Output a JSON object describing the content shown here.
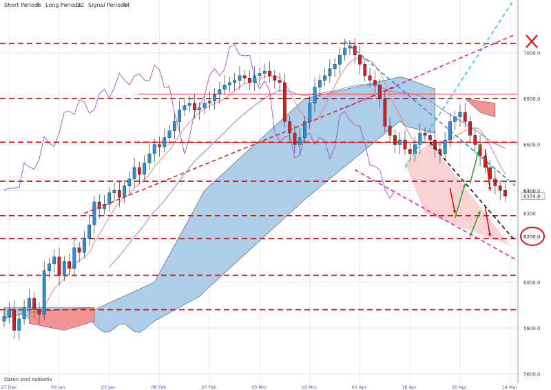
{
  "header": {
    "short_label": "Short Periode",
    "short_value": "7",
    "long_label": "Long Periode",
    "long_value": "22",
    "signal_label": "Signal Periode",
    "signal_value": "44"
  },
  "footer_note": "Daten sind indikativ",
  "colors": {
    "bull": "#2b8fd6",
    "bear": "#cc2222",
    "cloud_blue": "#a9cbe8",
    "cloud_red": "#f29292",
    "support": "#cc1111",
    "trend_red": "#dd2222",
    "trend_magenta": "#dd2299",
    "channel_blue": "#2a8ae0",
    "channel_cyan": "#22ccdd",
    "purple": "#9a55c0",
    "lavender": "#8a80e0",
    "salmon": "#f08080"
  },
  "chart_data": {
    "type": "candlestick",
    "y_ticks": [
      "7000.0",
      "6800.0",
      "6600.0",
      "6400.0",
      "6200.0",
      "6000.0",
      "5800.0",
      "5600.0"
    ],
    "y_value_ticks": [
      7000,
      6800,
      6600,
      6400,
      6200,
      6000,
      5800,
      5600
    ],
    "ylim": [
      5560,
      7230
    ],
    "x_ticks": [
      "27 Dez",
      "09 Jan",
      "23 Jan",
      "06 Feb",
      "20 Feb",
      "05 Mrz",
      "19 Mrz",
      "02 Apr",
      "16 Apr",
      "30 Apr",
      "14 Mai"
    ],
    "xlim": [
      0,
      102
    ],
    "last_price_label": "6374.8",
    "last_price": 6374.8,
    "extra_labels": [
      {
        "text": "6400",
        "value": 6400
      },
      {
        "text": "6300",
        "value": 6300
      }
    ],
    "circled_label": {
      "text": "6200.0",
      "value": 6200
    },
    "close": [
      5850,
      5880,
      5790,
      5840,
      5890,
      5930,
      5880,
      5860,
      6050,
      6080,
      6110,
      6030,
      6090,
      6060,
      6150,
      6130,
      6190,
      6250,
      6350,
      6320,
      6340,
      6390,
      6400,
      6370,
      6420,
      6450,
      6500,
      6470,
      6520,
      6560,
      6600,
      6590,
      6630,
      6660,
      6700,
      6750,
      6770,
      6780,
      6750,
      6760,
      6780,
      6790,
      6820,
      6840,
      6860,
      6870,
      6880,
      6900,
      6890,
      6870,
      6900,
      6910,
      6920,
      6900,
      6880,
      6870,
      6700,
      6650,
      6600,
      6630,
      6700,
      6780,
      6850,
      6880,
      6900,
      6930,
      6950,
      6990,
      7020,
      7030,
      6990,
      6950,
      6900,
      6880,
      6860,
      6800,
      6680,
      6640,
      6600,
      6620,
      6580,
      6560,
      6600,
      6650,
      6640,
      6620,
      6580,
      6560,
      6620,
      6700,
      6720,
      6740,
      6700,
      6640,
      6600,
      6550,
      6500,
      6450,
      6420,
      6400,
      6374.8
    ],
    "support_levels": [
      7040,
      6800,
      6610,
      6440,
      6290,
      6190,
      6030,
      5880
    ],
    "resistance_levels_solid": [
      6820,
      6610
    ],
    "trendlines": [
      {
        "name": "",
        "style": "dashed",
        "color": "red",
        "from": [
          16,
          6300
        ],
        "to": [
          78,
          6850
        ]
      },
      {
        "name": "",
        "style": "dashed",
        "color": "magenta",
        "from": [
          68,
          6760
        ],
        "to": [
          102,
          7080
        ]
      },
      {
        "name": "",
        "style": "dashed",
        "color": "blue",
        "from": [
          68,
          7050
        ],
        "to": [
          102,
          6420
        ]
      },
      {
        "name": "",
        "style": "dashed",
        "color": "cyan",
        "from": [
          80,
          6500
        ],
        "to": [
          102,
          7240
        ]
      },
      {
        "name": "",
        "style": "dashed",
        "color": "magenta",
        "from": [
          70,
          6490
        ],
        "to": [
          102,
          6100
        ]
      },
      {
        "name": "",
        "style": "dashed",
        "color": "black",
        "from": [
          85,
          6610
        ],
        "to": [
          102,
          6180
        ]
      }
    ],
    "arrows": [
      {
        "color": "green",
        "from": [
          90,
          6280
        ],
        "to": [
          92,
          6430
        ]
      },
      {
        "color": "green",
        "from": [
          93,
          6430
        ],
        "to": [
          95,
          6600
        ]
      },
      {
        "color": "red",
        "from": [
          96,
          6580
        ],
        "to": [
          97,
          6400
        ]
      },
      {
        "color": "red",
        "from": [
          89,
          6410
        ],
        "to": [
          90,
          6300
        ]
      },
      {
        "color": "green",
        "from": [
          93,
          6200
        ],
        "to": [
          95,
          6310
        ]
      },
      {
        "color": "red",
        "from": [
          96,
          6330
        ],
        "to": [
          97,
          6200
        ]
      }
    ],
    "grid": true
  }
}
